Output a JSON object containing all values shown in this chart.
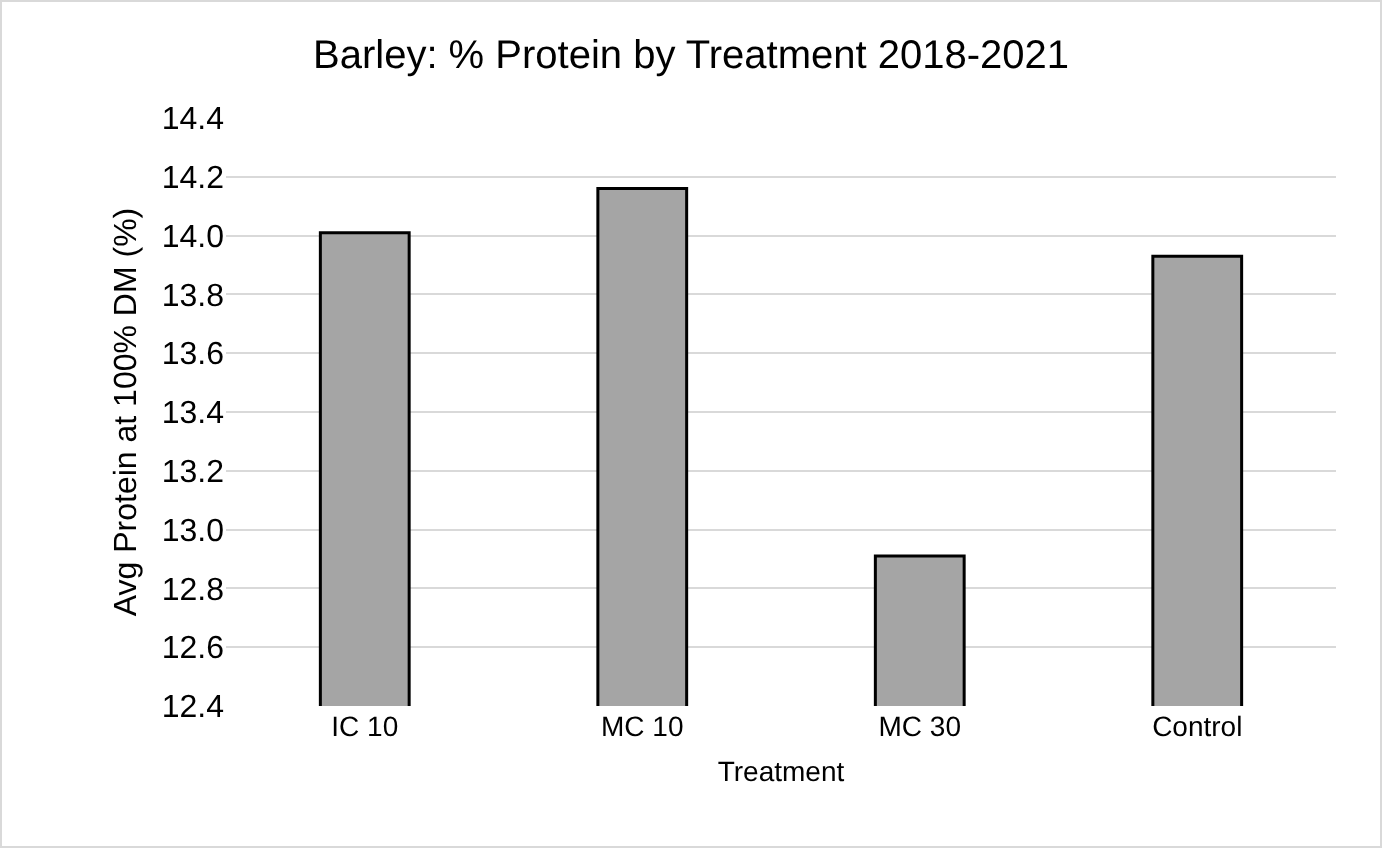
{
  "chart_data": {
    "type": "bar",
    "title": "Barley: % Protein by Treatment 2018-2021",
    "xlabel": "Treatment",
    "ylabel": "Avg Protein at 100% DM (%)",
    "categories": [
      "IC 10",
      "MC 10",
      "MC 30",
      "Control"
    ],
    "values": [
      14.01,
      14.16,
      12.91,
      13.93
    ],
    "color": "#a5a5a5",
    "ylim": [
      12.4,
      14.4
    ],
    "yticks": [
      {
        "value": 12.4,
        "label": "12.4"
      },
      {
        "value": 12.6,
        "label": "12.6"
      },
      {
        "value": 12.8,
        "label": "12.8"
      },
      {
        "value": 13,
        "label": "13.0"
      },
      {
        "value": 13.2,
        "label": "13.2"
      },
      {
        "value": 13.4,
        "label": "13.4"
      },
      {
        "value": 13.6,
        "label": "13.6"
      },
      {
        "value": 13.8,
        "label": "13.8"
      },
      {
        "value": 14,
        "label": "14.0"
      },
      {
        "value": 14.2,
        "label": "14.2"
      },
      {
        "value": 14.4,
        "label": "14.4"
      }
    ],
    "grid": "y",
    "legend": false
  }
}
